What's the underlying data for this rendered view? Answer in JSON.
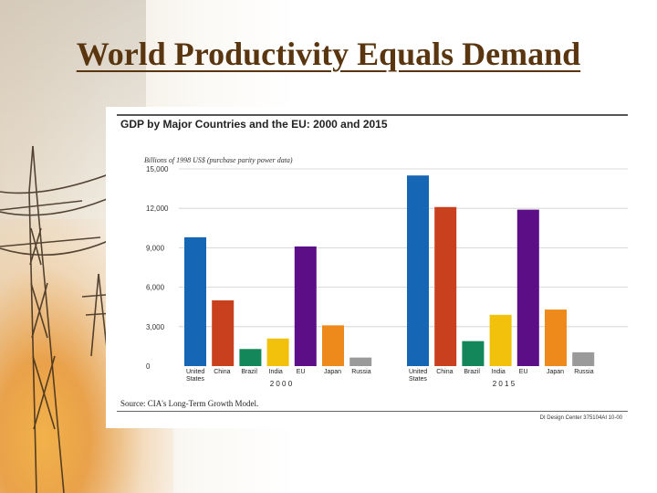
{
  "slide": {
    "title": "World Productivity Equals Demand"
  },
  "colors": {
    "title": "#5a3610",
    "United States": "#1566b5",
    "China": "#c8401e",
    "Brazil": "#13875a",
    "India": "#f2c10b",
    "EU": "#5c0e86",
    "Japan": "#ee8a1c",
    "Russia": "#9a9a9a"
  },
  "chart_data": {
    "type": "bar",
    "title": "GDP by Major Countries and the EU: 2000 and 2015",
    "ylabel": "Billions of 1998 US$ (purchase parity power data)",
    "ylim": [
      0,
      15000
    ],
    "yticks": [
      "15,000",
      "12,000",
      "9,000",
      "6,000",
      "3,000",
      "0"
    ],
    "ytick_values": [
      15000,
      12000,
      9000,
      6000,
      3000,
      0
    ],
    "groups": [
      {
        "year_label": "2 0 0 0",
        "categories": [
          "United States",
          "China",
          "Brazil",
          "India",
          "EU",
          "Japan",
          "Russia"
        ],
        "values": [
          9800,
          5000,
          1300,
          2100,
          9100,
          3100,
          650
        ]
      },
      {
        "year_label": "2 0 1 5",
        "categories": [
          "United States",
          "China",
          "Brazil",
          "India",
          "EU",
          "Japan",
          "Russia"
        ],
        "values": [
          14500,
          12100,
          1900,
          3900,
          11900,
          4300,
          1050
        ]
      }
    ],
    "source": "Source: CIA's Long-Term Growth Model.",
    "credit": "DI Design Center 375104AI 10-00"
  }
}
